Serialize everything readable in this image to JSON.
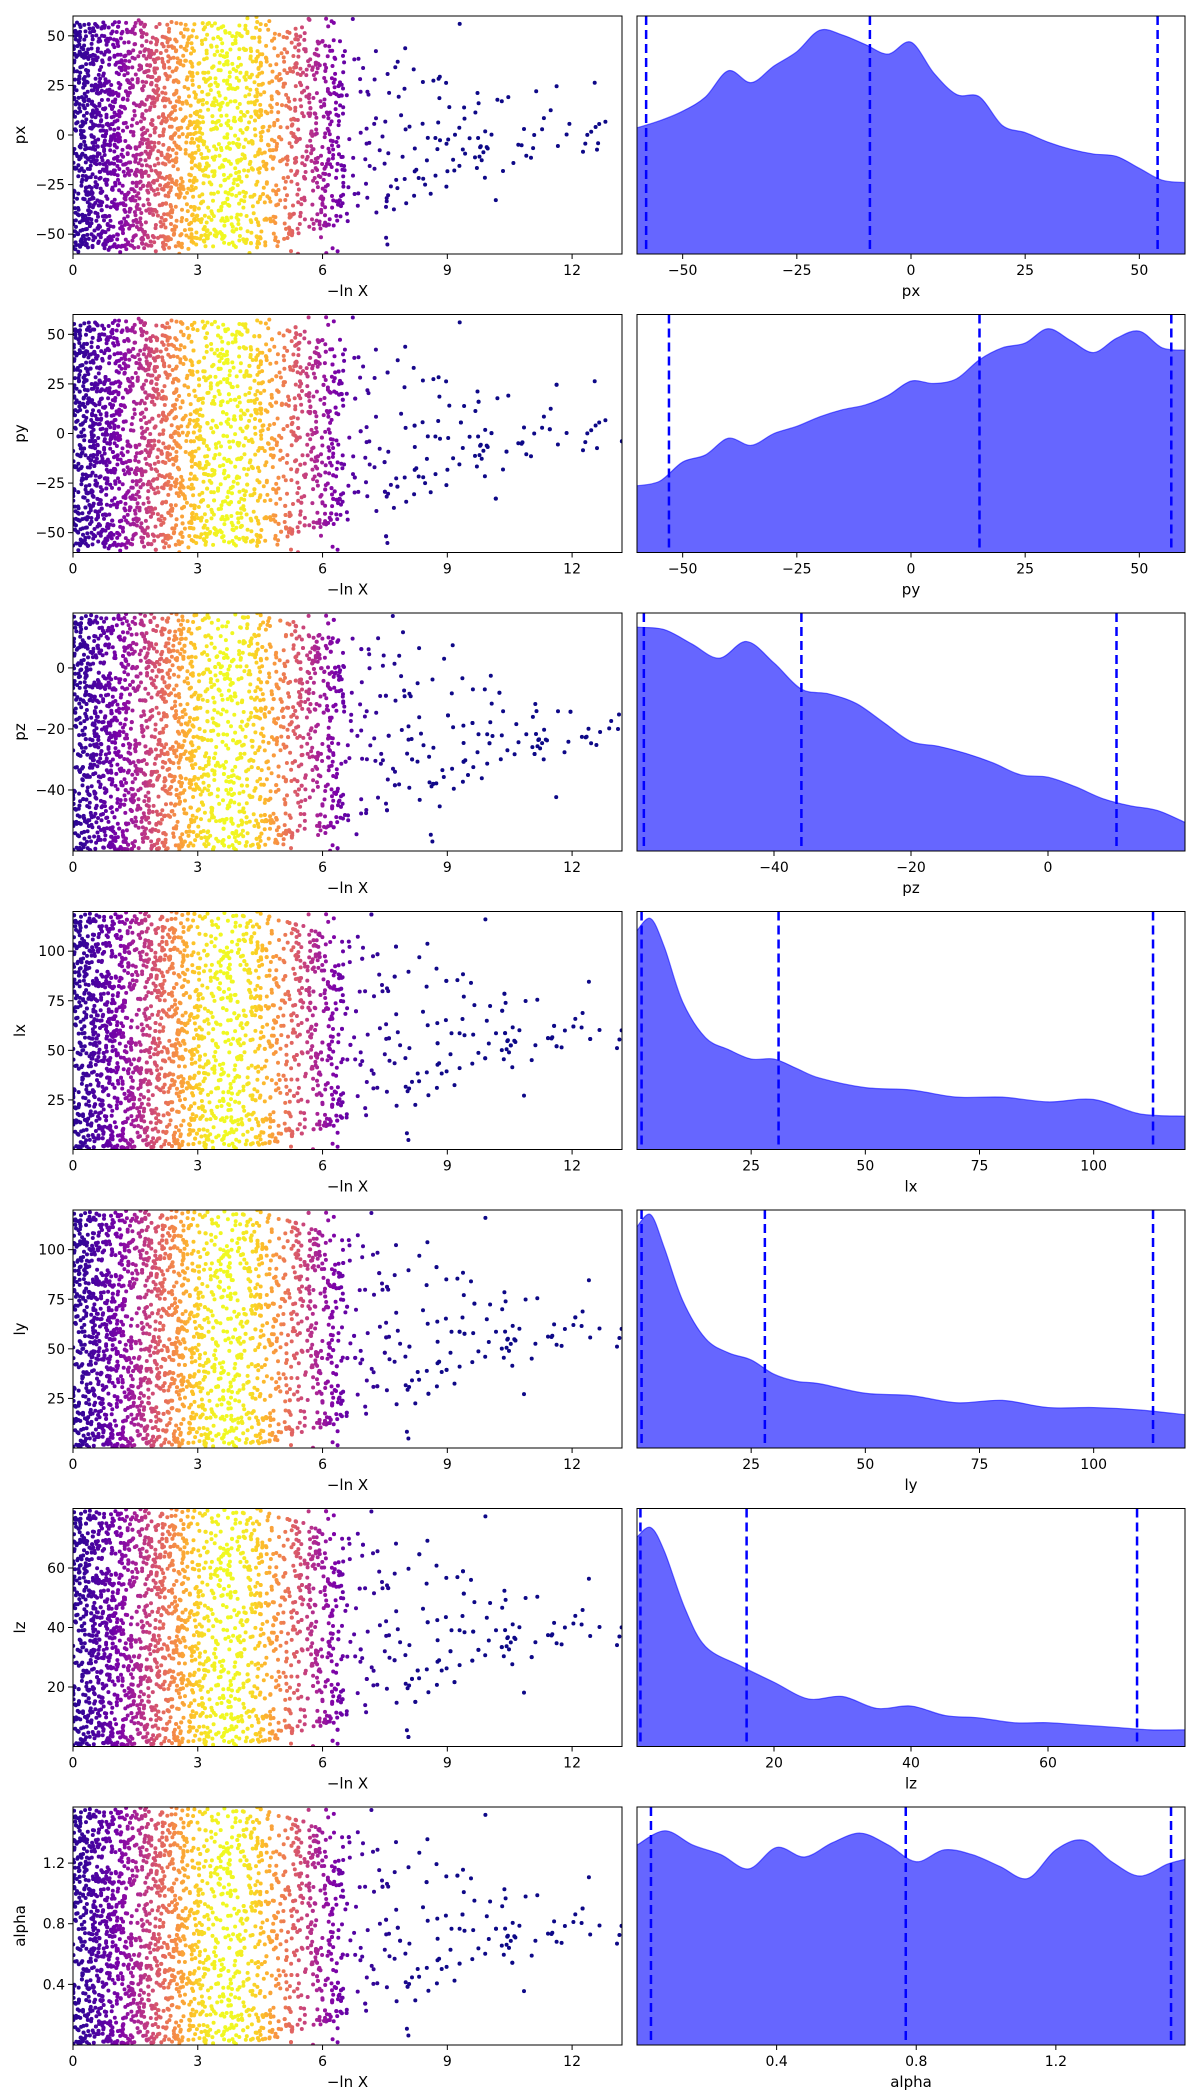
{
  "chart_data": [
    {
      "type": "scatter",
      "xlabel": "−ln X",
      "ylabel": "px",
      "xlim": [
        0,
        13.2
      ],
      "ylim": [
        -60,
        60
      ],
      "xticks": [
        0,
        3,
        6,
        9,
        12
      ],
      "yticks": [
        -50,
        -25,
        0,
        25,
        50
      ],
      "colormap": "plasma",
      "color_peak_x": 3.7,
      "spread": 0.95,
      "decay": 0.32
    },
    {
      "type": "area",
      "xlabel": "px",
      "xlim": [
        -60,
        60
      ],
      "ylim": [
        0,
        1
      ],
      "xticks": [
        -50,
        -25,
        0,
        25,
        50
      ],
      "fill_color": "#6666ff",
      "line_color": "#0000ff",
      "x": [
        -60,
        -55,
        -50,
        -45,
        -40,
        -35,
        -30,
        -25,
        -20,
        -15,
        -10,
        -5,
        0,
        5,
        10,
        15,
        20,
        25,
        30,
        35,
        40,
        45,
        50,
        55,
        60
      ],
      "density": [
        0.53,
        0.56,
        0.6,
        0.66,
        0.77,
        0.72,
        0.79,
        0.85,
        0.94,
        0.92,
        0.88,
        0.84,
        0.89,
        0.76,
        0.67,
        0.66,
        0.54,
        0.51,
        0.47,
        0.44,
        0.42,
        0.41,
        0.36,
        0.31,
        0.3
      ],
      "quantile_lines": [
        -58,
        -9,
        54
      ]
    },
    {
      "type": "scatter",
      "xlabel": "−ln X",
      "ylabel": "py",
      "xlim": [
        0,
        13.2
      ],
      "ylim": [
        -60,
        60
      ],
      "xticks": [
        0,
        3,
        6,
        9,
        12
      ],
      "yticks": [
        -50,
        -25,
        0,
        25,
        50
      ],
      "colormap": "plasma",
      "color_peak_x": 3.7,
      "spread": 0.95,
      "decay": 0.32
    },
    {
      "type": "area",
      "xlabel": "py",
      "xlim": [
        -60,
        60
      ],
      "ylim": [
        0,
        1
      ],
      "xticks": [
        -50,
        -25,
        0,
        25,
        50
      ],
      "fill_color": "#6666ff",
      "line_color": "#0000ff",
      "x": [
        -60,
        -55,
        -50,
        -45,
        -40,
        -35,
        -30,
        -25,
        -20,
        -15,
        -10,
        -5,
        0,
        5,
        10,
        15,
        20,
        25,
        30,
        35,
        40,
        45,
        50,
        55,
        60
      ],
      "density": [
        0.28,
        0.3,
        0.38,
        0.41,
        0.48,
        0.45,
        0.5,
        0.53,
        0.57,
        0.6,
        0.62,
        0.66,
        0.72,
        0.71,
        0.73,
        0.81,
        0.86,
        0.88,
        0.94,
        0.89,
        0.84,
        0.9,
        0.93,
        0.86,
        0.85
      ],
      "quantile_lines": [
        -53,
        15,
        57
      ]
    },
    {
      "type": "scatter",
      "xlabel": "−ln X",
      "ylabel": "pz",
      "xlim": [
        0,
        13.2
      ],
      "ylim": [
        -60,
        18
      ],
      "xticks": [
        0,
        3,
        6,
        9,
        12
      ],
      "yticks": [
        -40,
        -20,
        0
      ],
      "colormap": "plasma",
      "color_peak_x": 3.7,
      "spread": 1.0,
      "decay": 0.28
    },
    {
      "type": "area",
      "xlabel": "pz",
      "xlim": [
        -60,
        20
      ],
      "ylim": [
        0,
        1
      ],
      "xticks": [
        -40,
        -20,
        0
      ],
      "fill_color": "#6666ff",
      "line_color": "#0000ff",
      "x": [
        -60,
        -56,
        -52,
        -48,
        -44,
        -40,
        -36,
        -32,
        -28,
        -24,
        -20,
        -16,
        -12,
        -8,
        -4,
        0,
        4,
        8,
        12,
        16,
        20
      ],
      "density": [
        0.94,
        0.93,
        0.87,
        0.81,
        0.88,
        0.79,
        0.68,
        0.66,
        0.62,
        0.54,
        0.46,
        0.44,
        0.41,
        0.37,
        0.32,
        0.31,
        0.27,
        0.22,
        0.19,
        0.17,
        0.12
      ],
      "quantile_lines": [
        -59,
        -36,
        10
      ]
    },
    {
      "type": "scatter",
      "xlabel": "−ln X",
      "ylabel": "lx",
      "xlim": [
        0,
        13.2
      ],
      "ylim": [
        0,
        120
      ],
      "xticks": [
        0,
        3,
        6,
        9,
        12
      ],
      "yticks": [
        25,
        50,
        75,
        100
      ],
      "colormap": "plasma",
      "color_peak_x": 3.7,
      "spread": 1.0,
      "decay": 0.3
    },
    {
      "type": "area",
      "xlabel": "lx",
      "xlim": [
        0,
        120
      ],
      "ylim": [
        0,
        1
      ],
      "xticks": [
        25,
        50,
        75,
        100
      ],
      "fill_color": "#6666ff",
      "line_color": "#0000ff",
      "x": [
        0,
        3,
        6,
        10,
        15,
        20,
        25,
        30,
        35,
        40,
        50,
        60,
        70,
        80,
        90,
        100,
        110,
        120
      ],
      "density": [
        0.92,
        0.97,
        0.85,
        0.62,
        0.47,
        0.42,
        0.38,
        0.38,
        0.34,
        0.3,
        0.26,
        0.25,
        0.22,
        0.22,
        0.2,
        0.21,
        0.15,
        0.14
      ],
      "quantile_lines": [
        1,
        31,
        113
      ]
    },
    {
      "type": "scatter",
      "xlabel": "−ln X",
      "ylabel": "ly",
      "xlim": [
        0,
        13.2
      ],
      "ylim": [
        0,
        120
      ],
      "xticks": [
        0,
        3,
        6,
        9,
        12
      ],
      "yticks": [
        25,
        50,
        75,
        100
      ],
      "colormap": "plasma",
      "color_peak_x": 3.7,
      "spread": 1.0,
      "decay": 0.3
    },
    {
      "type": "area",
      "xlabel": "ly",
      "xlim": [
        0,
        120
      ],
      "ylim": [
        0,
        1
      ],
      "xticks": [
        25,
        50,
        75,
        100
      ],
      "fill_color": "#6666ff",
      "line_color": "#0000ff",
      "x": [
        0,
        3,
        6,
        10,
        15,
        20,
        25,
        30,
        35,
        40,
        50,
        60,
        70,
        80,
        90,
        100,
        110,
        120
      ],
      "density": [
        0.93,
        0.98,
        0.84,
        0.62,
        0.46,
        0.4,
        0.37,
        0.31,
        0.28,
        0.27,
        0.23,
        0.22,
        0.19,
        0.2,
        0.17,
        0.17,
        0.16,
        0.14
      ],
      "quantile_lines": [
        1,
        28,
        113
      ]
    },
    {
      "type": "scatter",
      "xlabel": "−ln X",
      "ylabel": "lz",
      "xlim": [
        0,
        13.2
      ],
      "ylim": [
        0,
        80
      ],
      "xticks": [
        0,
        3,
        6,
        9,
        12
      ],
      "yticks": [
        20,
        40,
        60
      ],
      "colormap": "plasma",
      "color_peak_x": 3.7,
      "spread": 1.0,
      "decay": 0.3
    },
    {
      "type": "area",
      "xlabel": "lz",
      "xlim": [
        0,
        80
      ],
      "ylim": [
        0,
        1
      ],
      "xticks": [
        20,
        40,
        60
      ],
      "fill_color": "#6666ff",
      "line_color": "#0000ff",
      "x": [
        0,
        2,
        4,
        7,
        10,
        15,
        20,
        25,
        30,
        35,
        40,
        45,
        50,
        55,
        60,
        65,
        70,
        75,
        80
      ],
      "density": [
        0.88,
        0.92,
        0.82,
        0.58,
        0.42,
        0.34,
        0.27,
        0.2,
        0.21,
        0.16,
        0.17,
        0.13,
        0.12,
        0.1,
        0.1,
        0.09,
        0.08,
        0.07,
        0.07
      ],
      "quantile_lines": [
        0.5,
        16,
        73
      ]
    },
    {
      "type": "scatter",
      "xlabel": "−ln X",
      "ylabel": "alpha",
      "xlim": [
        0,
        13.2
      ],
      "ylim": [
        0,
        1.57
      ],
      "xticks": [
        0,
        3,
        6,
        9,
        12
      ],
      "yticks": [
        0.4,
        0.8,
        1.2
      ],
      "colormap": "plasma",
      "color_peak_x": 3.7,
      "spread": 1.0,
      "decay": 0.3
    },
    {
      "type": "area",
      "xlabel": "alpha",
      "xlim": [
        0,
        1.57
      ],
      "ylim": [
        0,
        1
      ],
      "xticks": [
        0.4,
        0.8,
        1.2
      ],
      "fill_color": "#6666ff",
      "line_color": "#0000ff",
      "x": [
        0,
        0.08,
        0.16,
        0.24,
        0.32,
        0.4,
        0.48,
        0.56,
        0.64,
        0.72,
        0.8,
        0.88,
        0.96,
        1.04,
        1.12,
        1.2,
        1.28,
        1.36,
        1.44,
        1.52,
        1.57
      ],
      "density": [
        0.84,
        0.9,
        0.84,
        0.8,
        0.74,
        0.83,
        0.79,
        0.85,
        0.89,
        0.84,
        0.77,
        0.82,
        0.8,
        0.75,
        0.7,
        0.82,
        0.86,
        0.77,
        0.71,
        0.76,
        0.78
      ],
      "quantile_lines": [
        0.04,
        0.77,
        1.53
      ]
    }
  ]
}
